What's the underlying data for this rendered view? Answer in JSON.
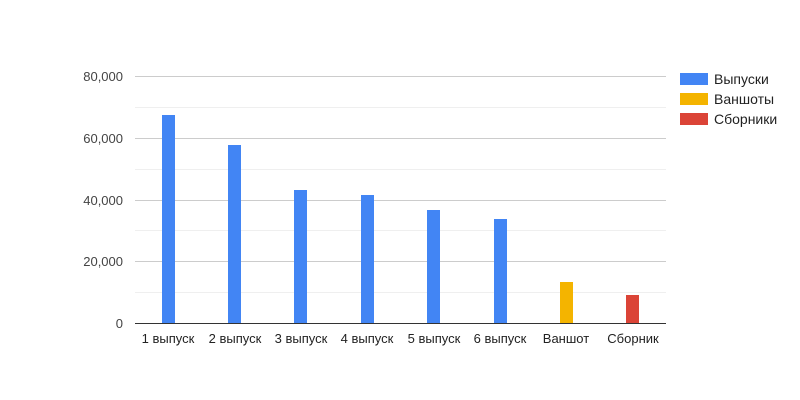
{
  "chart_data": {
    "type": "bar",
    "title": "",
    "xlabel": "",
    "ylabel": "",
    "categories": [
      "1 выпуск",
      "2 выпуск",
      "3 выпуск",
      "4 выпуск",
      "5 выпуск",
      "6 выпуск",
      "Ваншот",
      "Сборник"
    ],
    "series": [
      {
        "name": "Выпуски",
        "color": "#4285F4",
        "values": [
          67400,
          57500,
          43000,
          41600,
          36600,
          33600,
          null,
          null
        ]
      },
      {
        "name": "Ваншоты",
        "color": "#F4B400",
        "values": [
          null,
          null,
          null,
          null,
          null,
          null,
          13300,
          null
        ]
      },
      {
        "name": "Сборники",
        "color": "#DB4437",
        "values": [
          null,
          null,
          null,
          null,
          null,
          null,
          null,
          9000
        ]
      }
    ],
    "ylim": [
      0,
      80000
    ],
    "y_major_ticks": [
      {
        "value": 0,
        "label": "0"
      },
      {
        "value": 20000,
        "label": "20,000"
      },
      {
        "value": 40000,
        "label": "40,000"
      },
      {
        "value": 60000,
        "label": "60,000"
      },
      {
        "value": 80000,
        "label": "80,000"
      }
    ],
    "y_minor_ticks": [
      10000,
      30000,
      50000,
      70000
    ],
    "grid": true,
    "legend_position": "right"
  },
  "legend": {
    "items": [
      {
        "label": "Выпуски",
        "color": "#4285F4"
      },
      {
        "label": "Ваншоты",
        "color": "#F4B400"
      },
      {
        "label": "Сборники",
        "color": "#DB4437"
      }
    ]
  }
}
